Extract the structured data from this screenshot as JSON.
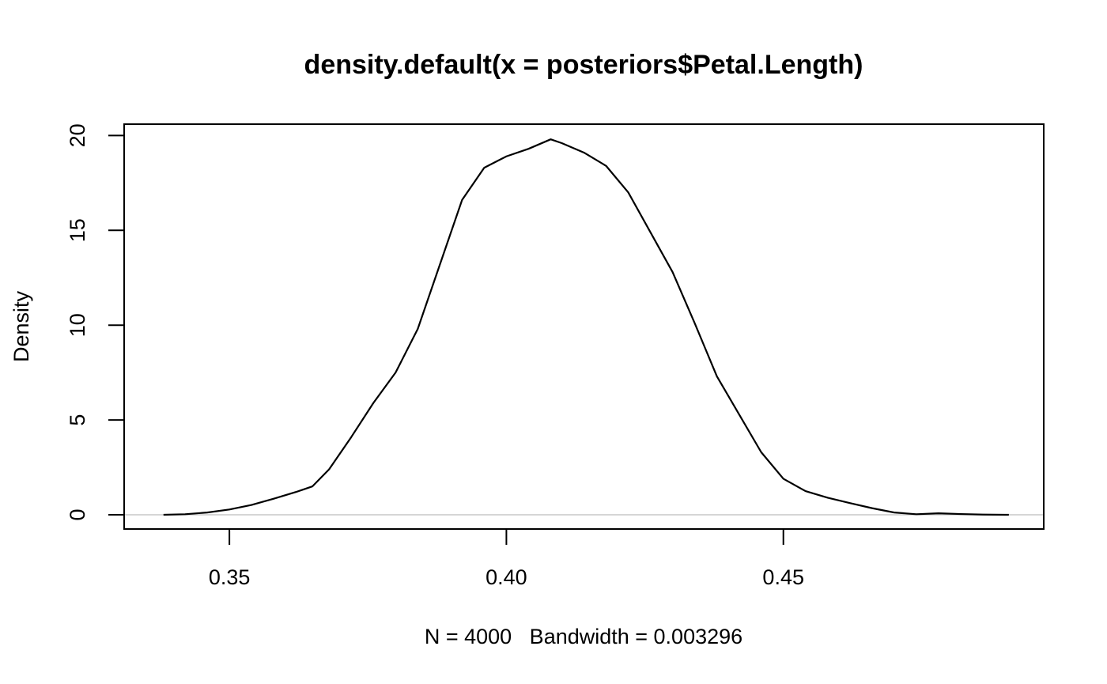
{
  "chart_data": {
    "type": "line",
    "title": "density.default(x = posteriors$Petal.Length)",
    "xlabel": "N = 4000   Bandwidth = 0.003296",
    "ylabel": "Density",
    "xlim": [
      0.331,
      0.497
    ],
    "ylim": [
      -0.75,
      20.6
    ],
    "xticks": [
      {
        "value": 0.35,
        "label": "0.35"
      },
      {
        "value": 0.4,
        "label": "0.40"
      },
      {
        "value": 0.45,
        "label": "0.45"
      }
    ],
    "yticks": [
      {
        "value": 0,
        "label": "0"
      },
      {
        "value": 5,
        "label": "5"
      },
      {
        "value": 10,
        "label": "10"
      },
      {
        "value": 15,
        "label": "15"
      },
      {
        "value": 20,
        "label": "20"
      }
    ],
    "baseline": 0,
    "baseline_color": "#bebebe",
    "line_color": "#000000",
    "grid": false,
    "legend": "none",
    "series": [
      {
        "x": [
          0.3381,
          0.342,
          0.346,
          0.35,
          0.354,
          0.358,
          0.362,
          0.365,
          0.368,
          0.372,
          0.376,
          0.38,
          0.384,
          0.388,
          0.392,
          0.396,
          0.4,
          0.404,
          0.408,
          0.41,
          0.414,
          0.418,
          0.422,
          0.426,
          0.43,
          0.434,
          0.438,
          0.442,
          0.446,
          0.45,
          0.454,
          0.458,
          0.462,
          0.466,
          0.47,
          0.474,
          0.478,
          0.482,
          0.486,
          0.4907
        ],
        "y": [
          0.0,
          0.03,
          0.12,
          0.28,
          0.52,
          0.85,
          1.2,
          1.5,
          2.4,
          4.1,
          5.9,
          7.5,
          9.8,
          13.2,
          16.6,
          18.3,
          18.9,
          19.3,
          19.8,
          19.6,
          19.1,
          18.4,
          17.0,
          14.9,
          12.8,
          10.1,
          7.3,
          5.3,
          3.3,
          1.9,
          1.25,
          0.9,
          0.62,
          0.35,
          0.12,
          0.03,
          0.08,
          0.04,
          0.01,
          0.0
        ]
      }
    ]
  }
}
